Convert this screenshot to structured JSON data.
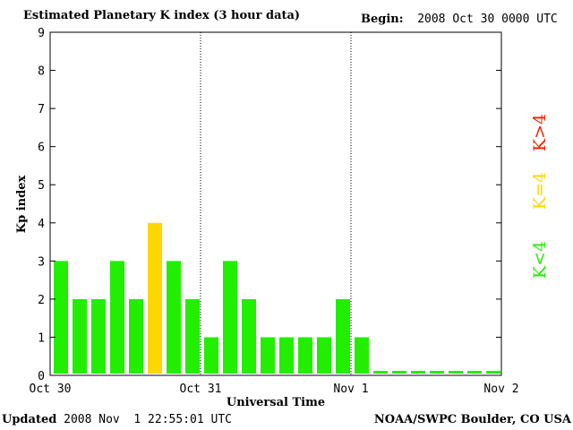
{
  "header": {
    "title": "Estimated Planetary K index (3 hour data)",
    "begin_label": "Begin:",
    "begin_value": "2008 Oct 30 0000 UTC"
  },
  "footer": {
    "updated_label": "Updated",
    "updated_value": "2008 Nov  1 22:55:01 UTC",
    "source": "NOAA/SWPC Boulder, CO USA"
  },
  "chart_data": {
    "type": "bar",
    "title": "Estimated Planetary K index (3 hour data)",
    "xlabel": "Universal Time",
    "ylabel": "Kp index",
    "ylim": [
      0,
      9
    ],
    "yticks": [
      "0",
      "1",
      "2",
      "3",
      "4",
      "5",
      "6",
      "7",
      "8",
      "9"
    ],
    "day_labels": [
      "Oct 30",
      "Oct 31",
      "Nov 1",
      "Nov 2"
    ],
    "values": [
      3,
      2,
      2,
      3,
      2,
      4,
      3,
      2,
      1,
      3,
      2,
      1,
      1,
      1,
      1,
      2,
      1,
      0,
      0,
      0,
      0,
      0,
      0,
      0
    ],
    "colors": {
      "below": "#22ee00",
      "equal": "#ffd700",
      "above": "#ee2200"
    },
    "legend": [
      "K<4",
      "K=4",
      "K>4"
    ],
    "legend_position": "right"
  }
}
